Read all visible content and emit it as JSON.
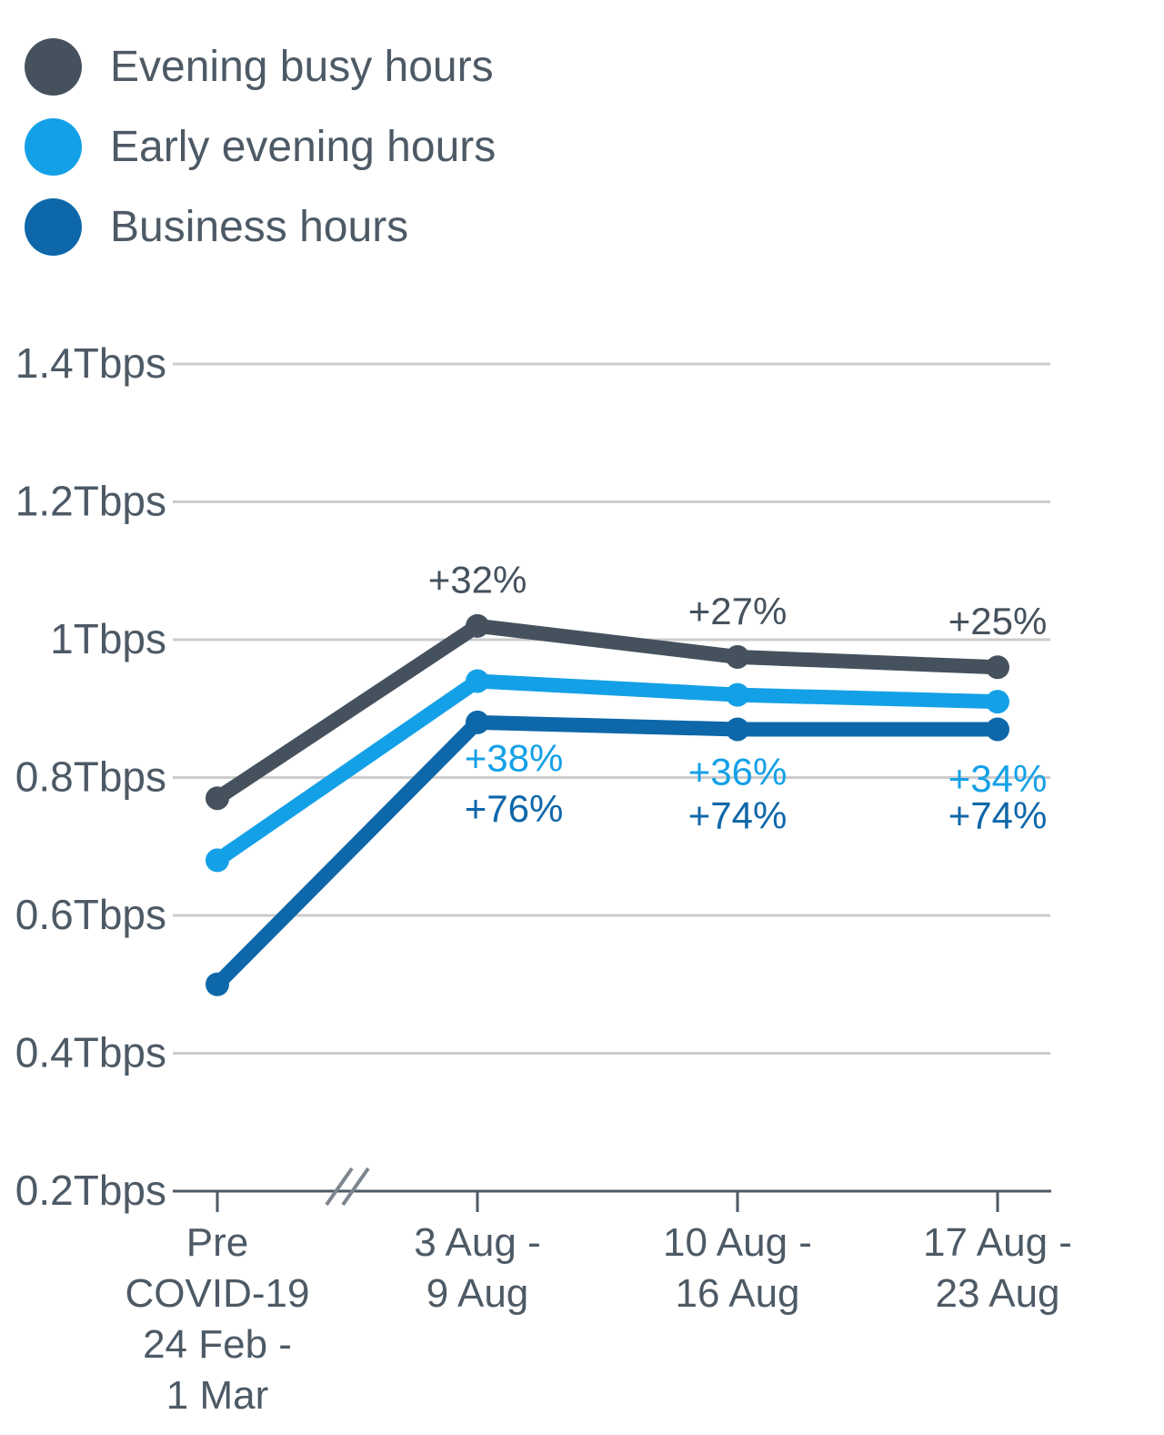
{
  "colors": {
    "text": "#4d5a66",
    "gridline": "#cccccc",
    "axis": "#4d5a66",
    "axis_break": "#7e878f",
    "background": "#ffffff"
  },
  "legend": {
    "items": [
      {
        "id": "evening-busy-hours",
        "label": "Evening busy hours",
        "color": "#45525d"
      },
      {
        "id": "early-evening-hours",
        "label": "Early evening hours",
        "color": "#14a0e7"
      },
      {
        "id": "business-hours",
        "label": "Business hours",
        "color": "#0e67a9"
      }
    ]
  },
  "chart_data": {
    "type": "line",
    "title": "",
    "xlabel": "",
    "ylabel": "",
    "unit": "Tbps",
    "ylim": [
      0.2,
      1.4
    ],
    "grid": true,
    "legend_position": "top-left",
    "axis_break_between": [
      "Pre COVID-19 24 Feb - 1 Mar",
      "3 Aug - 9 Aug"
    ],
    "y_ticks": [
      {
        "value": 1.4,
        "label": "1.4Tbps"
      },
      {
        "value": 1.2,
        "label": "1.2Tbps"
      },
      {
        "value": 1.0,
        "label": "1Tbps"
      },
      {
        "value": 0.8,
        "label": "0.8Tbps"
      },
      {
        "value": 0.6,
        "label": "0.6Tbps"
      },
      {
        "value": 0.4,
        "label": "0.4Tbps"
      },
      {
        "value": 0.2,
        "label": "0.2Tbps"
      }
    ],
    "categories": [
      {
        "label": "Pre COVID-19 24 Feb - 1 Mar",
        "lines": [
          "Pre",
          "COVID-19",
          "24 Feb -",
          "1 Mar"
        ]
      },
      {
        "label": "3 Aug - 9 Aug",
        "lines": [
          "3 Aug -",
          "9 Aug"
        ]
      },
      {
        "label": "10 Aug - 16 Aug",
        "lines": [
          "10 Aug -",
          "16 Aug"
        ]
      },
      {
        "label": "17 Aug - 23 Aug",
        "lines": [
          "17 Aug -",
          "23 Aug"
        ]
      }
    ],
    "series": [
      {
        "id": "evening-busy-hours",
        "name": "Evening busy hours",
        "color": "#45525d",
        "values": [
          0.77,
          1.02,
          0.975,
          0.96
        ],
        "annotations": [
          null,
          "+32%",
          "+27%",
          "+25%"
        ]
      },
      {
        "id": "early-evening-hours",
        "name": "Early evening hours",
        "color": "#14a0e7",
        "values": [
          0.68,
          0.94,
          0.92,
          0.91
        ],
        "annotations": [
          null,
          "+38%",
          "+36%",
          "+34%"
        ]
      },
      {
        "id": "business-hours",
        "name": "Business hours",
        "color": "#0e67a9",
        "values": [
          0.5,
          0.88,
          0.87,
          0.87
        ],
        "annotations": [
          null,
          "+76%",
          "+74%",
          "+74%"
        ]
      }
    ]
  }
}
